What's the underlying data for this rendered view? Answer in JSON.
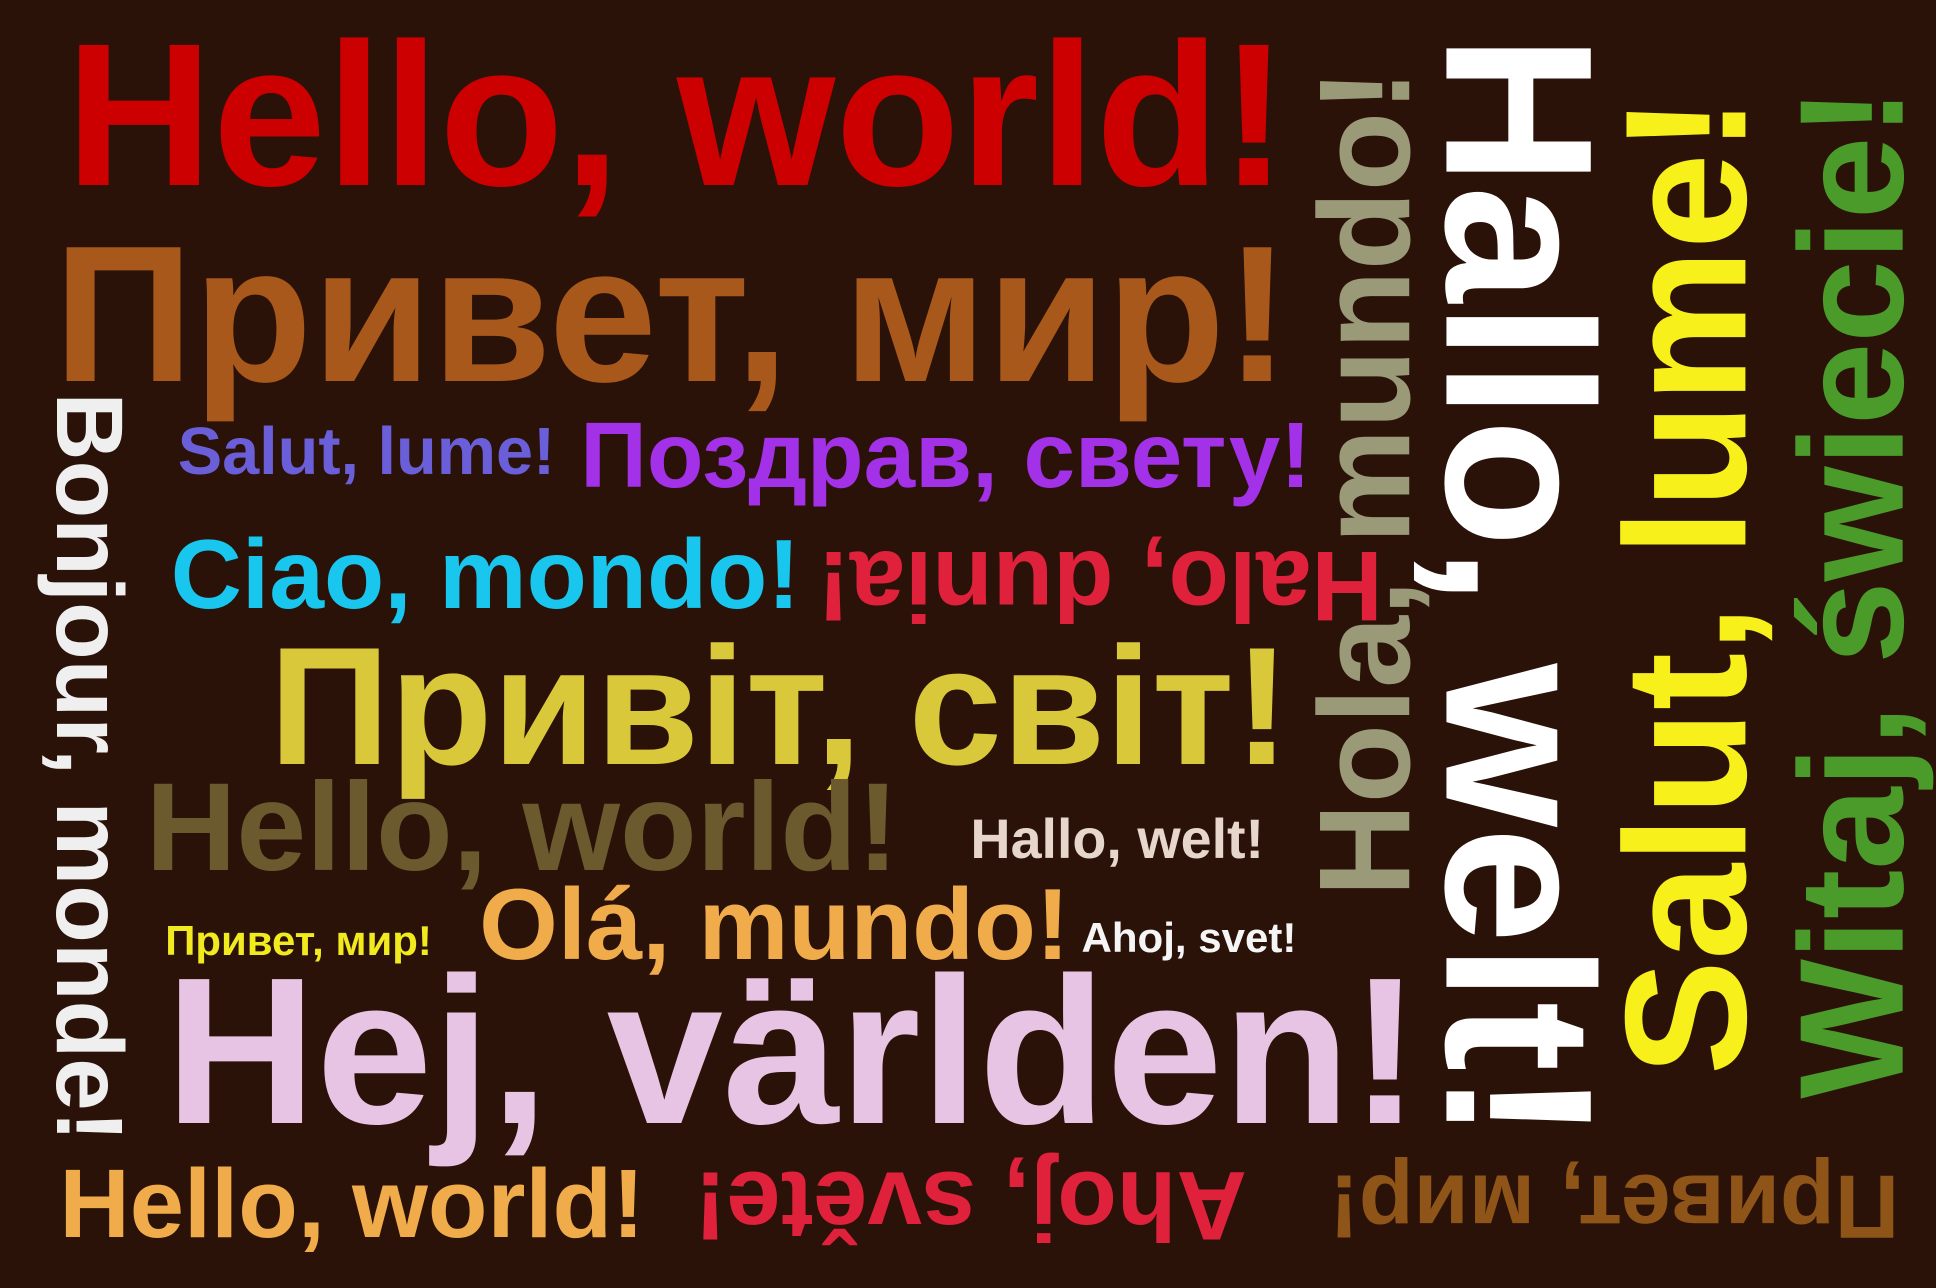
{
  "background_color": "#2a1209",
  "phrases": [
    {
      "id": "en-top",
      "text": "Hello, world!",
      "color": "#cc0000",
      "orientation": "horizontal"
    },
    {
      "id": "ru-top",
      "text": "Привет, мир!",
      "color": "#a8581a",
      "orientation": "horizontal"
    },
    {
      "id": "ro-small",
      "text": "Salut, lume!",
      "color": "#6a5fd8",
      "orientation": "horizontal"
    },
    {
      "id": "sr",
      "text": "Поздрав, свету!",
      "color": "#a331e8",
      "orientation": "horizontal"
    },
    {
      "id": "it",
      "text": "Ciao, mondo!",
      "color": "#18c6ee",
      "orientation": "horizontal"
    },
    {
      "id": "ms",
      "text": "Halo, dunia!",
      "color": "#e0213b",
      "orientation": "upside-down"
    },
    {
      "id": "uk",
      "text": "Привіт, світ!",
      "color": "#d9c93a",
      "orientation": "horizontal"
    },
    {
      "id": "en-mid",
      "text": "Hello, world!",
      "color": "#6b5a2e",
      "orientation": "horizontal"
    },
    {
      "id": "de-small",
      "text": "Hallo, welt!",
      "color": "#e6d6cc",
      "orientation": "horizontal"
    },
    {
      "id": "ru-small",
      "text": "Привет, мир!",
      "color": "#f0ea1e",
      "orientation": "horizontal"
    },
    {
      "id": "pt",
      "text": "Olá, mundo!",
      "color": "#f0ab4b",
      "orientation": "horizontal"
    },
    {
      "id": "sk-small",
      "text": "Ahoj, svet!",
      "color": "#f5f5f5",
      "orientation": "horizontal"
    },
    {
      "id": "sv",
      "text": "Hej, världen!",
      "color": "#e8c4e4",
      "orientation": "horizontal"
    },
    {
      "id": "en-bottom",
      "text": "Hello, world!",
      "color": "#f0ab4b",
      "orientation": "horizontal"
    },
    {
      "id": "cs",
      "text": "Ahoj, světe!",
      "color": "#e0213b",
      "orientation": "upside-down"
    },
    {
      "id": "ru-bottom",
      "text": "Привет, мир!",
      "color": "#8f5418",
      "orientation": "upside-down"
    },
    {
      "id": "fr",
      "text": "Bonjour, monde!",
      "color": "#efefef",
      "orientation": "vertical-down"
    },
    {
      "id": "es",
      "text": "Hola, mundo!",
      "color": "#9a9978",
      "orientation": "vertical-up"
    },
    {
      "id": "de-big",
      "text": "Hallo, welt!",
      "color": "#ffffff",
      "orientation": "vertical-down"
    },
    {
      "id": "ro-big",
      "text": "Salut, lume!",
      "color": "#f7f01a",
      "orientation": "vertical-up"
    },
    {
      "id": "pl",
      "text": "Witaj, świecie!",
      "color": "#4a9b2a",
      "orientation": "vertical-up"
    }
  ]
}
